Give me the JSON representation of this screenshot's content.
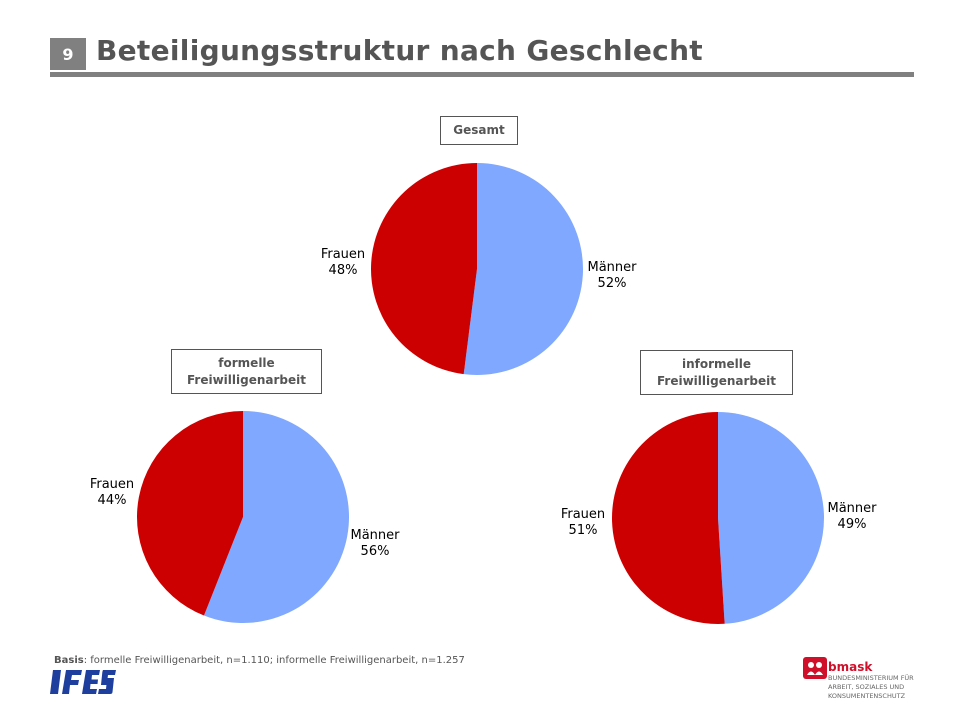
{
  "slide": {
    "number": "9",
    "title": "Beteiligungsstruktur nach Geschlecht"
  },
  "chart_data": [
    {
      "type": "pie",
      "title": "Gesamt",
      "categories": [
        "Männer",
        "Frauen"
      ],
      "values": [
        52,
        48
      ],
      "value_labels": [
        "52%",
        "48%"
      ],
      "colors": [
        "#80a8ff",
        "#cc0000"
      ]
    },
    {
      "type": "pie",
      "title": "formelle Freiwilligenarbeit",
      "categories": [
        "Männer",
        "Frauen"
      ],
      "values": [
        56,
        44
      ],
      "value_labels": [
        "56%",
        "44%"
      ],
      "colors": [
        "#80a8ff",
        "#cc0000"
      ]
    },
    {
      "type": "pie",
      "title": "informelle Freiwilligenarbeit",
      "categories": [
        "Männer",
        "Frauen"
      ],
      "values": [
        49,
        51
      ],
      "value_labels": [
        "49%",
        "51%"
      ],
      "colors": [
        "#80a8ff",
        "#cc0000"
      ]
    }
  ],
  "footer": {
    "basis_label": "Basis",
    "basis_text": ": formelle Freiwilligenarbeit, n=1.110; informelle Freiwilligenarbeit, n=1.257",
    "logo_left": "IFES",
    "logo_right_name": "bmask",
    "logo_right_ministry": "BUNDESMINISTERIUM FÜR ARBEIT, SOZIALES UND KONSUMENTENSCHUTZ"
  },
  "colors": {
    "men": "#80a8ff",
    "women": "#cc0000",
    "ifes_blue": "#1f3f9e",
    "bmask_red": "#d0102a"
  }
}
